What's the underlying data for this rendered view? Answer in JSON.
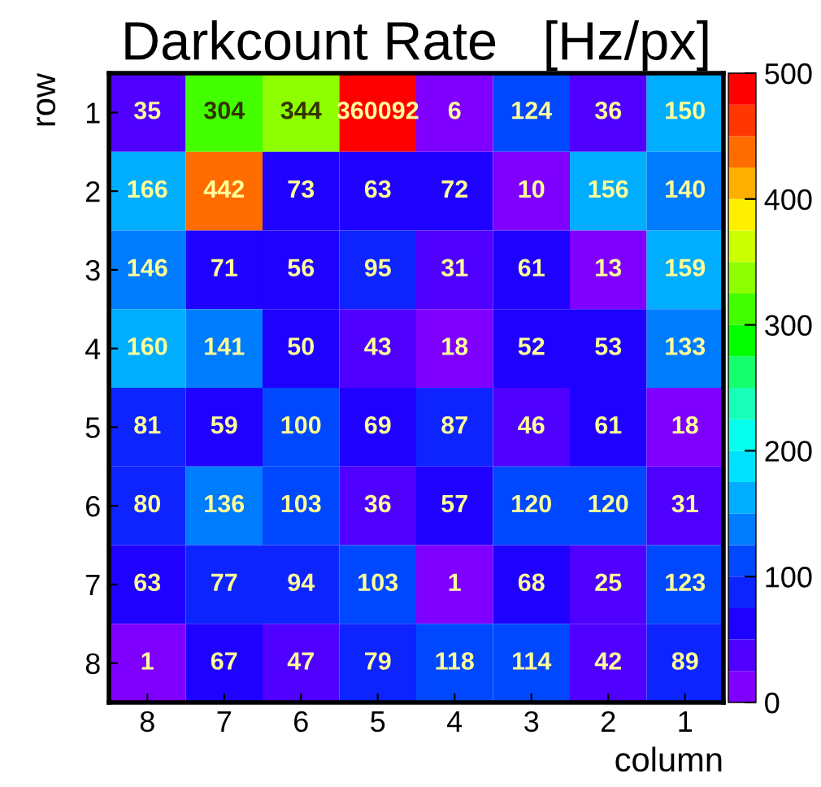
{
  "chart_data": {
    "type": "heatmap",
    "title": "Darkcount Rate   [Hz/px]",
    "xlabel": "column",
    "ylabel": "row",
    "categories": [
      "8",
      "7",
      "6",
      "5",
      "4",
      "3",
      "2",
      "1"
    ],
    "y_categories": [
      "1",
      "2",
      "3",
      "4",
      "5",
      "6",
      "7",
      "8"
    ],
    "cells": [
      [
        35,
        304,
        344,
        360092,
        6,
        124,
        36,
        150
      ],
      [
        166,
        442,
        73,
        63,
        72,
        10,
        156,
        140
      ],
      [
        146,
        71,
        56,
        95,
        31,
        61,
        13,
        159
      ],
      [
        160,
        141,
        50,
        43,
        18,
        52,
        53,
        133
      ],
      [
        81,
        59,
        100,
        69,
        87,
        46,
        61,
        18
      ],
      [
        80,
        136,
        103,
        36,
        57,
        120,
        120,
        31
      ],
      [
        63,
        77,
        94,
        103,
        1,
        68,
        25,
        123
      ],
      [
        1,
        67,
        47,
        79,
        118,
        114,
        42,
        89
      ]
    ],
    "clim": [
      0,
      500
    ],
    "cticks": [
      0,
      100,
      200,
      300,
      400,
      500
    ],
    "data_labels": true
  }
}
